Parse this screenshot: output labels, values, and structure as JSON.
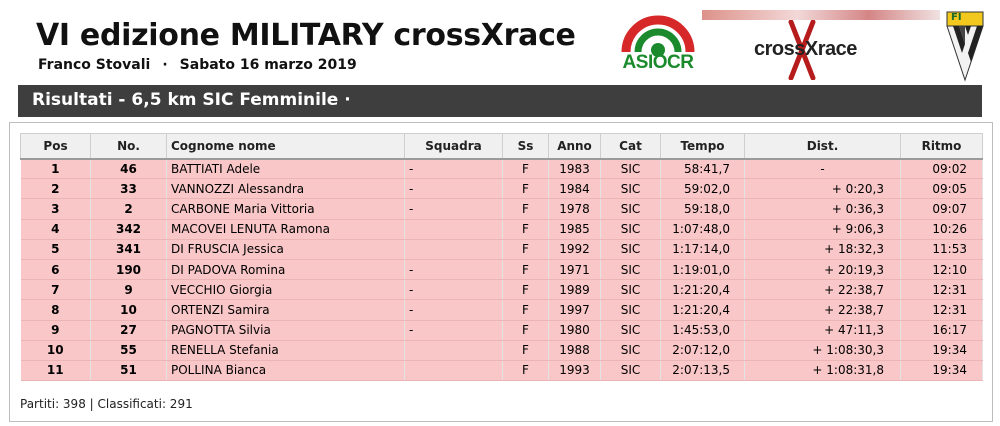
{
  "header": {
    "title": "VI edizione MILITARY crossXrace",
    "organizer": "Franco Stovali",
    "separator": "·",
    "date": "Sabato 16 marzo 2019"
  },
  "logos": {
    "asiocr_text": "ASIOCR",
    "crossxrace_text": "crossXrace",
    "fi_text": "FI"
  },
  "section_title": "Risultati - 6,5 km SIC Femminile  ·",
  "table": {
    "columns": [
      "Pos",
      "No.",
      "Cognome nome",
      "Squadra",
      "Ss",
      "Anno",
      "Cat",
      "Tempo",
      "Dist.",
      "Ritmo"
    ],
    "rows": [
      {
        "pos": "1",
        "no": "46",
        "name": "BATTIATI Adele",
        "squadra": "-",
        "ss": "F",
        "anno": "1983",
        "cat": "SIC",
        "tempo": "58:41,7",
        "dist": "-",
        "ritmo": "09:02"
      },
      {
        "pos": "2",
        "no": "33",
        "name": "VANNOZZI Alessandra",
        "squadra": "-",
        "ss": "F",
        "anno": "1984",
        "cat": "SIC",
        "tempo": "59:02,0",
        "dist": "+ 0:20,3",
        "ritmo": "09:05"
      },
      {
        "pos": "3",
        "no": "2",
        "name": "CARBONE Maria Vittoria",
        "squadra": "-",
        "ss": "F",
        "anno": "1978",
        "cat": "SIC",
        "tempo": "59:18,0",
        "dist": "+ 0:36,3",
        "ritmo": "09:07"
      },
      {
        "pos": "4",
        "no": "342",
        "name": "MACOVEI LENUTA Ramona",
        "squadra": "",
        "ss": "F",
        "anno": "1985",
        "cat": "SIC",
        "tempo": "1:07:48,0",
        "dist": "+ 9:06,3",
        "ritmo": "10:26"
      },
      {
        "pos": "5",
        "no": "341",
        "name": "DI FRUSCIA Jessica",
        "squadra": "",
        "ss": "F",
        "anno": "1992",
        "cat": "SIC",
        "tempo": "1:17:14,0",
        "dist": "+ 18:32,3",
        "ritmo": "11:53"
      },
      {
        "pos": "6",
        "no": "190",
        "name": "DI PADOVA Romina",
        "squadra": "-",
        "ss": "F",
        "anno": "1971",
        "cat": "SIC",
        "tempo": "1:19:01,0",
        "dist": "+ 20:19,3",
        "ritmo": "12:10"
      },
      {
        "pos": "7",
        "no": "9",
        "name": "VECCHIO Giorgia",
        "squadra": "-",
        "ss": "F",
        "anno": "1989",
        "cat": "SIC",
        "tempo": "1:21:20,4",
        "dist": "+ 22:38,7",
        "ritmo": "12:31"
      },
      {
        "pos": "8",
        "no": "10",
        "name": "ORTENZI Samira",
        "squadra": "-",
        "ss": "F",
        "anno": "1997",
        "cat": "SIC",
        "tempo": "1:21:20,4",
        "dist": "+ 22:38,7",
        "ritmo": "12:31"
      },
      {
        "pos": "9",
        "no": "27",
        "name": "PAGNOTTA Silvia",
        "squadra": "-",
        "ss": "F",
        "anno": "1980",
        "cat": "SIC",
        "tempo": "1:45:53,0",
        "dist": "+ 47:11,3",
        "ritmo": "16:17"
      },
      {
        "pos": "10",
        "no": "55",
        "name": "RENELLA Stefania",
        "squadra": "",
        "ss": "F",
        "anno": "1988",
        "cat": "SIC",
        "tempo": "2:07:12,0",
        "dist": "+ 1:08:30,3",
        "ritmo": "19:34"
      },
      {
        "pos": "11",
        "no": "51",
        "name": "POLLINA Bianca",
        "squadra": "",
        "ss": "F",
        "anno": "1993",
        "cat": "SIC",
        "tempo": "2:07:13,5",
        "dist": "+ 1:08:31,8",
        "ritmo": "19:34"
      }
    ]
  },
  "footer": "Partiti: 398 | Classificati: 291",
  "colors": {
    "row_bg": "#f9c7c8",
    "title_bar": "#3e3e3e",
    "asiocr_green": "#1a8a2c",
    "asiocr_red": "#d62828"
  }
}
